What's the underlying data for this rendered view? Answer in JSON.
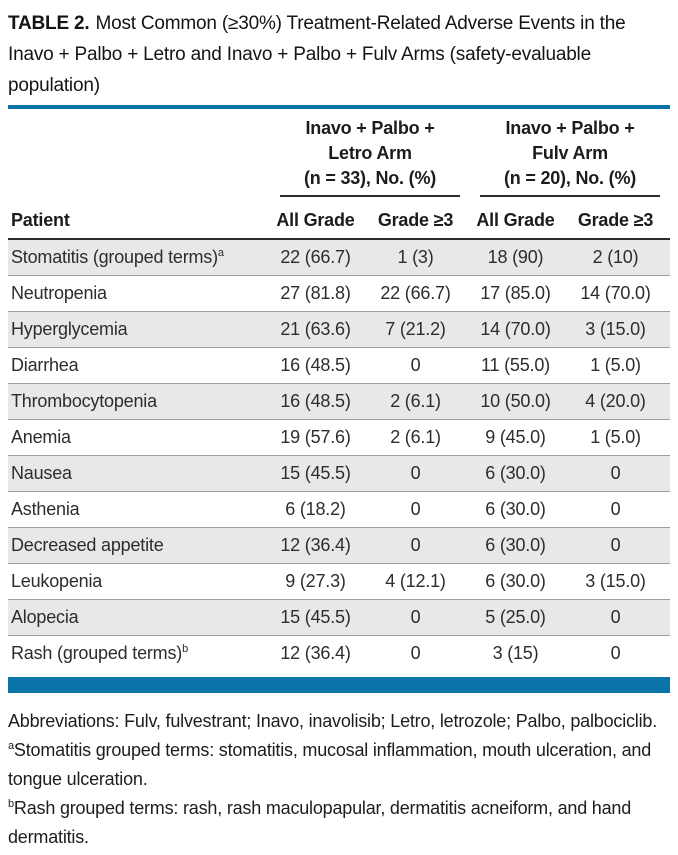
{
  "title": {
    "label": "TABLE 2.",
    "text": "Most Common (≥30%) Treatment-Related Adverse Events in the Inavo + Palbo + Letro and Inavo + Palbo + Fulv Arms (safety-evaluable population)"
  },
  "table": {
    "groups": [
      {
        "line1": "Inavo + Palbo +",
        "line2": "Letro Arm",
        "line3": "(n = 33), No. (%)"
      },
      {
        "line1": "Inavo + Palbo +",
        "line2": "Fulv Arm",
        "line3": "(n = 20), No. (%)"
      }
    ],
    "columns": [
      "Patient",
      "All Grade",
      "Grade ≥3",
      "All Grade",
      "Grade ≥3"
    ],
    "rows": [
      {
        "patient": "Stomatitis (grouped terms)",
        "sup": "a",
        "values": [
          "22 (66.7)",
          "1 (3)",
          "18 (90)",
          "2 (10)"
        ]
      },
      {
        "patient": "Neutropenia",
        "sup": "",
        "values": [
          "27 (81.8)",
          "22 (66.7)",
          "17 (85.0)",
          "14 (70.0)"
        ]
      },
      {
        "patient": "Hyperglycemia",
        "sup": "",
        "values": [
          "21 (63.6)",
          "7 (21.2)",
          "14 (70.0)",
          "3 (15.0)"
        ]
      },
      {
        "patient": "Diarrhea",
        "sup": "",
        "values": [
          "16 (48.5)",
          "0",
          "11 (55.0)",
          "1 (5.0)"
        ]
      },
      {
        "patient": "Thrombocytopenia",
        "sup": "",
        "values": [
          "16 (48.5)",
          "2 (6.1)",
          "10 (50.0)",
          "4 (20.0)"
        ]
      },
      {
        "patient": "Anemia",
        "sup": "",
        "values": [
          "19 (57.6)",
          "2 (6.1)",
          "9 (45.0)",
          "1 (5.0)"
        ]
      },
      {
        "patient": "Nausea",
        "sup": "",
        "values": [
          "15 (45.5)",
          "0",
          "6 (30.0)",
          "0"
        ]
      },
      {
        "patient": "Asthenia",
        "sup": "",
        "values": [
          "6 (18.2)",
          "0",
          "6 (30.0)",
          "0"
        ]
      },
      {
        "patient": "Decreased appetite",
        "sup": "",
        "values": [
          "12 (36.4)",
          "0",
          "6 (30.0)",
          "0"
        ]
      },
      {
        "patient": "Leukopenia",
        "sup": "",
        "values": [
          "9 (27.3)",
          "4 (12.1)",
          "6 (30.0)",
          "3 (15.0)"
        ]
      },
      {
        "patient": "Alopecia",
        "sup": "",
        "values": [
          "15 (45.5)",
          "0",
          "5 (25.0)",
          "0"
        ]
      },
      {
        "patient": "Rash (grouped terms)",
        "sup": "b",
        "values": [
          "12 (36.4)",
          "0",
          "3 (15)",
          "0"
        ]
      }
    ]
  },
  "footnotes": {
    "abbreviations": "Abbreviations: Fulv, fulvestrant; Inavo, inavolisib; Letro, letrozole; Palbo, palbociclib.",
    "a": {
      "sup": "a",
      "text": "Stomatitis grouped terms: stomatitis, mucosal inflammation, mouth ulceration, and tongue ulceration."
    },
    "b": {
      "sup": "b",
      "text": "Rash grouped terms: rash, rash maculopapular, dermatitis acneiform, and hand dermatitis."
    }
  },
  "colors": {
    "accent_blue": "#0a73a8",
    "row_stripe": "#e8e8e8",
    "heavy_rule": "#2b2b2b",
    "row_rule": "#9e9e9e"
  }
}
